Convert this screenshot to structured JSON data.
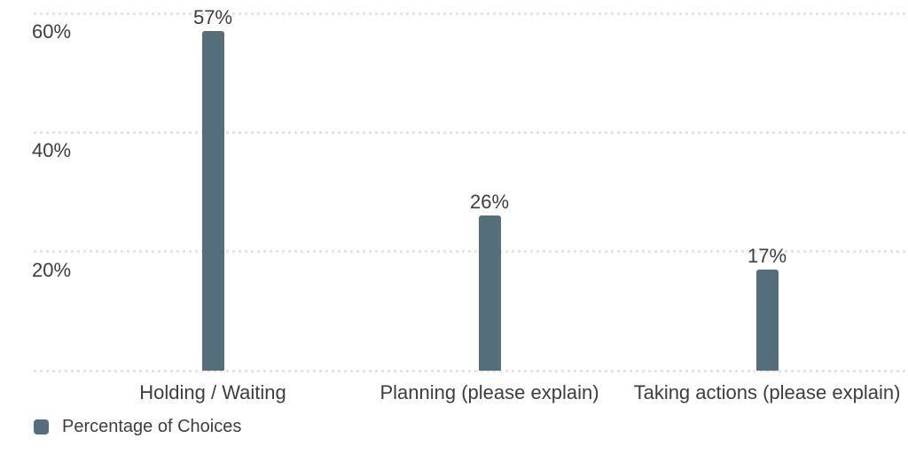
{
  "chart_data": {
    "type": "bar",
    "categories": [
      "Holding / Waiting",
      "Planning (please explain)",
      "Taking actions (please explain)"
    ],
    "values": [
      57,
      26,
      17
    ],
    "data_labels": [
      "57%",
      "26%",
      "17%"
    ],
    "yticks": [
      {
        "label": "60%",
        "value": 60
      },
      {
        "label": "40%",
        "value": 40
      },
      {
        "label": "20%",
        "value": 20
      },
      {
        "label": "",
        "value": 0
      }
    ],
    "ylim": [
      0,
      62
    ],
    "grid": "horizontal-dotted",
    "legend": {
      "position": "bottom-left",
      "label": "Percentage of Choices"
    }
  },
  "colors": {
    "bar": "#546E7C",
    "gridline": "#E4E4E4",
    "text": "#3D3D3D",
    "background": "#FFFFFF"
  }
}
